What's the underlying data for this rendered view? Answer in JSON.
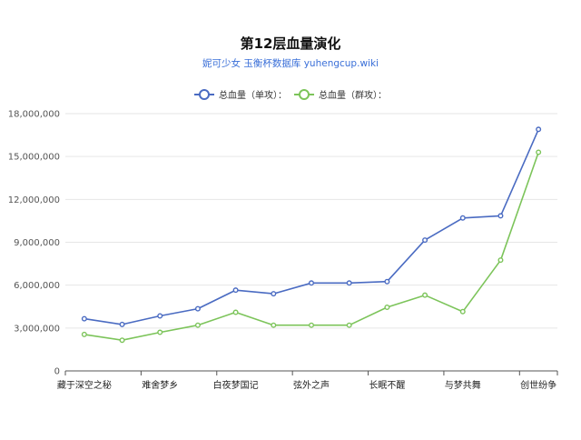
{
  "chart_data": {
    "type": "line",
    "title": "第12层血量演化",
    "subtitle": "妮可少女 玉衡杯数据库 yuhengcup.wiki",
    "legend_position": "top-center",
    "grid": true,
    "categories": [
      "藏于深空之秘",
      "",
      "难舍梦乡",
      "",
      "白夜梦国记",
      "",
      "弦外之声",
      "",
      "长眠不醒",
      "",
      "与梦共舞",
      "",
      "创世纷争"
    ],
    "x_tick_labels": [
      "藏于深空之秘",
      "难舍梦乡",
      "白夜梦国记",
      "弦外之声",
      "长眠不醒",
      "与梦共舞",
      "创世纷争"
    ],
    "y_ticks": [
      "0",
      "3,000,000",
      "6,000,000",
      "9,000,000",
      "12,000,000",
      "15,000,000",
      "18,000,000"
    ],
    "ylim": [
      0,
      18000000
    ],
    "series": [
      {
        "name": "总血量（单攻）：",
        "color": "#4a6bc2",
        "values": [
          3650000,
          3250000,
          3850000,
          4350000,
          5650000,
          5400000,
          6150000,
          6150000,
          6250000,
          9150000,
          10700000,
          10850000,
          16900000
        ]
      },
      {
        "name": "总血量（群攻）：",
        "color": "#7cc45a",
        "values": [
          2550000,
          2150000,
          2700000,
          3200000,
          4100000,
          3200000,
          3200000,
          3200000,
          4450000,
          5300000,
          4150000,
          7750000,
          15300000
        ]
      }
    ]
  }
}
